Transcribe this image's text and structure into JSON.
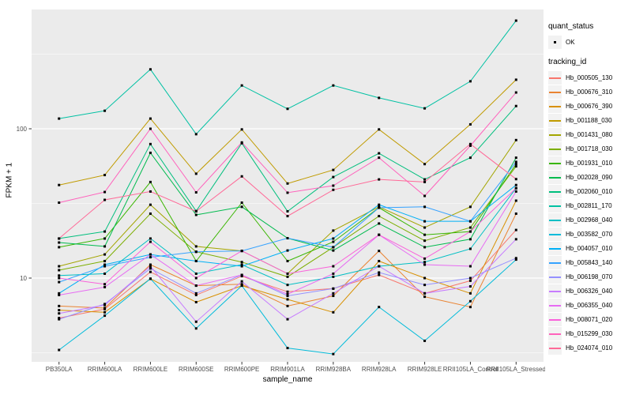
{
  "figure": {
    "background": "#ffffff",
    "panel_background": "#EBEBEB",
    "gridline_color": "#ffffff",
    "tick_text_color": "#4D4D4D",
    "point_color": "#000000"
  },
  "legend": {
    "quant_status_title": "quant_status",
    "ok_label": "OK",
    "tracking_id_title": "tracking_id"
  },
  "chart_data": {
    "type": "line",
    "title": "",
    "xlabel": "sample_name",
    "ylabel": "FPKM + 1",
    "y_scale": "log10",
    "ylim": [
      2.85,
      630
    ],
    "y_major_ticks": [
      10,
      100
    ],
    "y_minor_gridlines": [
      3.1623,
      31.623,
      316.23
    ],
    "grid": "on",
    "legend_position": "right",
    "point_shape": "black-square",
    "quant_status_value": "OK",
    "categories": [
      "PB350LA",
      "RRIM600LA",
      "RRIM600LE",
      "RRIM600SE",
      "RRIM600PE",
      "RRIM901LA",
      "RRIM928BA",
      "RRIM928LA",
      "RRIM928LE",
      "RRII105LA_Control",
      "RRII105LA_Stressed"
    ],
    "series": [
      {
        "name": "Hb_000505_130",
        "color": "#F8766D",
        "values": [
          5.4,
          6.2,
          11.0,
          7.7,
          10.3,
          8.1,
          8.5,
          10.5,
          7.9,
          9.6,
          21
        ]
      },
      {
        "name": "Hb_000676_310",
        "color": "#EA8331",
        "values": [
          6.5,
          6.3,
          12.3,
          8.9,
          9.1,
          6.5,
          7.6,
          15.2,
          7.5,
          6.4,
          27
        ]
      },
      {
        "name": "Hb_000676_390",
        "color": "#D89000",
        "values": [
          6.1,
          5.9,
          9.9,
          6.9,
          8.9,
          7.2,
          5.9,
          13.0,
          10.0,
          7.9,
          33
        ]
      },
      {
        "name": "Hb_001188_030",
        "color": "#C09B00",
        "values": [
          42,
          49,
          117,
          50,
          99,
          43,
          53,
          99,
          58,
          107,
          213
        ]
      },
      {
        "name": "Hb_001431_080",
        "color": "#A3A500",
        "values": [
          12.0,
          14.4,
          31,
          16.3,
          15.2,
          10.7,
          20.8,
          30,
          21.8,
          30,
          84
        ]
      },
      {
        "name": "Hb_001718_030",
        "color": "#7CAE00",
        "values": [
          11.3,
          13.0,
          27,
          15.0,
          12.8,
          10.2,
          16.1,
          26,
          17.8,
          21.8,
          56
        ]
      },
      {
        "name": "Hb_001931_010",
        "color": "#39B600",
        "values": [
          16.1,
          18.4,
          44,
          13.0,
          32,
          13.0,
          17.5,
          29.6,
          19.5,
          20.5,
          58
        ]
      },
      {
        "name": "Hb_002028_090",
        "color": "#00BB4E",
        "values": [
          17.3,
          16.3,
          69,
          26.5,
          30,
          18.5,
          15.3,
          23.2,
          16.1,
          18.2,
          64
        ]
      },
      {
        "name": "Hb_002060_010",
        "color": "#00BF7D",
        "values": [
          18.4,
          20.5,
          79,
          28.1,
          80,
          28,
          47.5,
          68.5,
          45.8,
          64,
          142
        ]
      },
      {
        "name": "Hb_002811_170",
        "color": "#00C1A3",
        "values": [
          117,
          132,
          250,
          92,
          195,
          136,
          195,
          161,
          137,
          208,
          530
        ]
      },
      {
        "name": "Hb_002968_040",
        "color": "#00BFC4",
        "values": [
          10.4,
          10.7,
          18.4,
          10.7,
          12.3,
          9.0,
          10.2,
          12.0,
          12.8,
          15.7,
          40
        ]
      },
      {
        "name": "Hb_003582_070",
        "color": "#00BBDA",
        "values": [
          3.3,
          5.6,
          9.9,
          4.6,
          8.9,
          3.4,
          3.1,
          6.4,
          3.8,
          7.0,
          13.3
        ]
      },
      {
        "name": "Hb_004057_010",
        "color": "#00B0F6",
        "values": [
          7.9,
          12.3,
          14.4,
          13.0,
          12.0,
          15.3,
          18.4,
          31,
          24,
          24,
          42
        ]
      },
      {
        "name": "Hb_005843_140",
        "color": "#35A2FF",
        "values": [
          9.4,
          12.0,
          13.8,
          15.0,
          15.2,
          18.5,
          16.1,
          29.6,
          30,
          24,
          60
        ]
      },
      {
        "name": "Hb_006198_070",
        "color": "#9590FF",
        "values": [
          5.3,
          6.7,
          11.6,
          7.9,
          10.5,
          7.6,
          8.5,
          10.9,
          9.0,
          10.0,
          13.6
        ]
      },
      {
        "name": "Hb_006326_040",
        "color": "#C77CFF",
        "values": [
          5.8,
          6.6,
          12.0,
          5.1,
          9.5,
          5.3,
          7.9,
          12.0,
          7.9,
          8.8,
          18.2
        ]
      },
      {
        "name": "Hb_006355_040",
        "color": "#E76BF3",
        "values": [
          7.7,
          8.7,
          14.4,
          8.9,
          10.5,
          7.8,
          10.7,
          19.5,
          12.3,
          12.0,
          38
        ]
      },
      {
        "name": "Hb_008071_020",
        "color": "#FA62DB",
        "values": [
          10.0,
          9.1,
          17.5,
          10.0,
          15.2,
          10.7,
          12.0,
          19.5,
          13.5,
          20.5,
          40
        ]
      },
      {
        "name": "Hb_015299_030",
        "color": "#FF62BC",
        "values": [
          32,
          37.7,
          100,
          37.5,
          81,
          37.3,
          41.6,
          64,
          35.5,
          77,
          175
        ]
      },
      {
        "name": "Hb_024074_010",
        "color": "#FF6A98",
        "values": [
          18.4,
          33.4,
          38,
          28,
          48,
          26,
          39,
          45.8,
          44,
          79,
          46
        ]
      }
    ]
  }
}
